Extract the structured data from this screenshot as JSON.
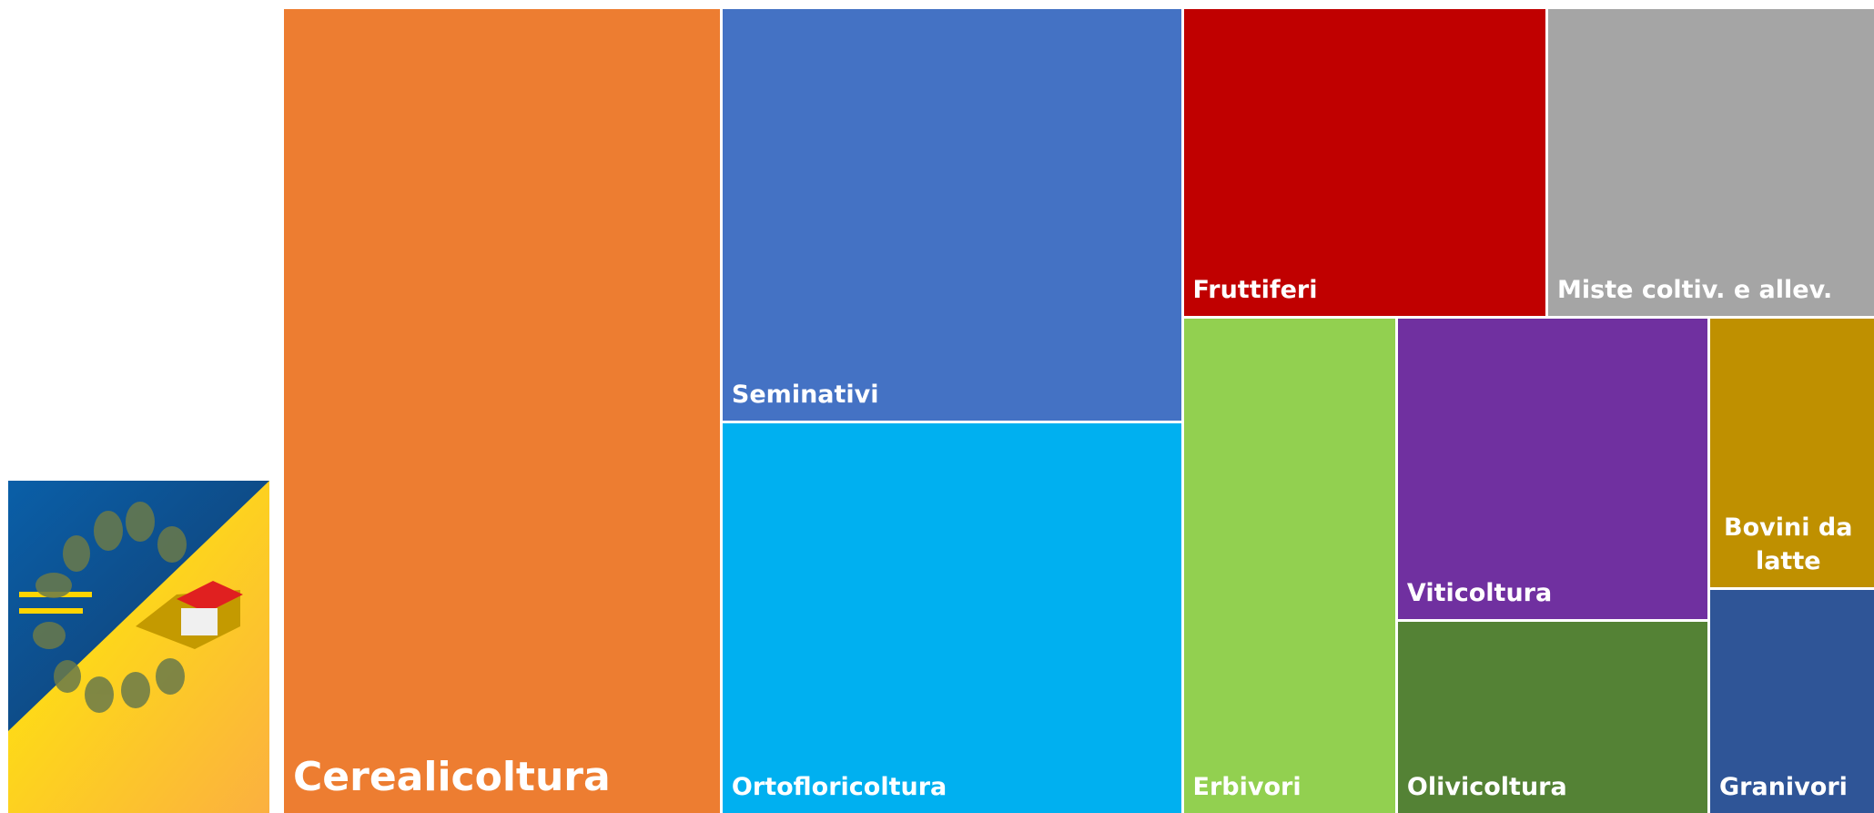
{
  "chart_data": {
    "type": "treemap",
    "categories": [
      "Cerealicoltura",
      "Seminativi",
      "Ortofloricoltura",
      "Fruttiferi",
      "Miste coltiv. e allev.",
      "Erbivori",
      "Viticoltura",
      "Olivicoltura",
      "Bovini da latte",
      "Granivori"
    ],
    "values": [
      27.5,
      14.9,
      14.1,
      8.8,
      7.9,
      8.3,
      7.4,
      4.7,
      3.5,
      2.9
    ],
    "colors": [
      "#ED7D31",
      "#4472C4",
      "#00B0F0",
      "#C00000",
      "#A5A5A5",
      "#92D050",
      "#7030A0",
      "#548235",
      "#BF9000",
      "#2F5597"
    ]
  }
}
